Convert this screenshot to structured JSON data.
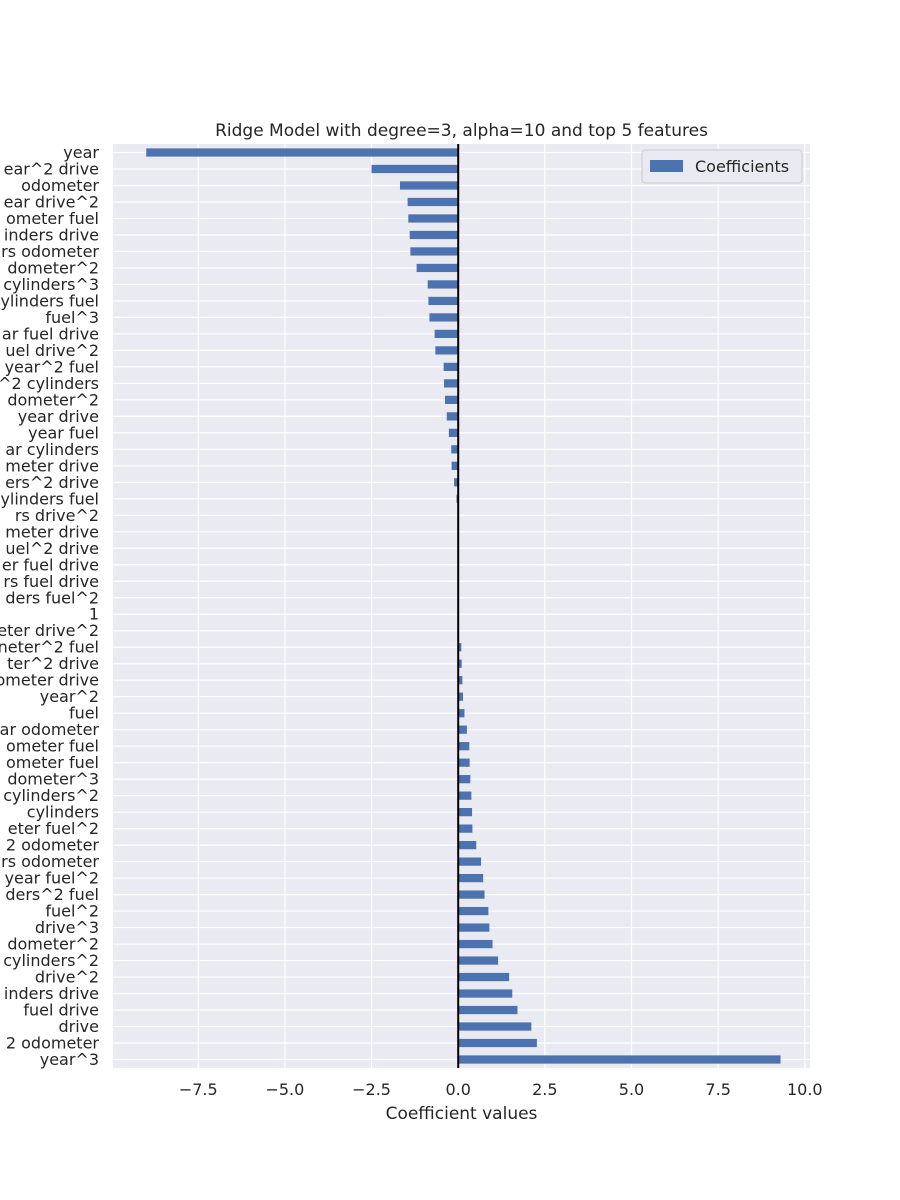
{
  "chart_data": {
    "type": "bar",
    "orientation": "horizontal",
    "title": "Ridge Model with degree=3, alpha=10 and top 5 features",
    "xlabel": "Coefficient values",
    "ylabel": "",
    "xlim": [
      -9.96,
      10.15
    ],
    "xticks": [
      -7.5,
      -5.0,
      -2.5,
      0.0,
      2.5,
      5.0,
      7.5,
      10.0
    ],
    "xtick_labels": [
      "−7.5",
      "−5.0",
      "−2.5",
      "0.0",
      "2.5",
      "5.0",
      "7.5",
      "10.0"
    ],
    "grid": true,
    "legend_position": "top-right",
    "bar_color": "#4c72b0",
    "zero_line_color": "#000000",
    "series": [
      {
        "name": "Coefficients",
        "categories": [
          "year",
          "ear^2 drive",
          "odometer",
          "ear drive^2",
          "ometer fuel",
          "inders drive",
          "rs odometer",
          "dometer^2",
          "cylinders^3",
          "ylinders fuel",
          "fuel^3",
          "ar fuel drive",
          "uel drive^2",
          "year^2 fuel",
          "^2 cylinders",
          "dometer^2",
          "year drive",
          "year fuel",
          "ar cylinders",
          "meter drive",
          "ers^2 drive",
          "ylinders fuel",
          "rs drive^2",
          "meter drive",
          "uel^2 drive",
          "er fuel drive",
          "rs fuel drive",
          "ders fuel^2",
          "1",
          "eter drive^2",
          "neter^2 fuel",
          "ter^2 drive",
          "ometer drive",
          "year^2",
          "fuel",
          "ar odometer",
          "ometer fuel",
          "ometer fuel",
          "dometer^3",
          "cylinders^2",
          "cylinders",
          "eter fuel^2",
          "2 odometer",
          "rs odometer",
          "year fuel^2",
          "ders^2 fuel",
          "fuel^2",
          "drive^3",
          "dometer^2",
          "cylinders^2",
          "drive^2",
          "inders drive",
          "fuel drive",
          "drive",
          "2 odometer",
          "year^3"
        ],
        "values": [
          -9.0,
          -2.5,
          -1.68,
          -1.46,
          -1.44,
          -1.4,
          -1.38,
          -1.2,
          -0.88,
          -0.86,
          -0.83,
          -0.68,
          -0.66,
          -0.42,
          -0.41,
          -0.38,
          -0.33,
          -0.27,
          -0.2,
          -0.19,
          -0.12,
          -0.05,
          0.0,
          0.0,
          0.0,
          0.0,
          0.0,
          0.0,
          0.0,
          0.02,
          0.09,
          0.1,
          0.12,
          0.14,
          0.18,
          0.25,
          0.32,
          0.33,
          0.35,
          0.38,
          0.4,
          0.41,
          0.52,
          0.66,
          0.72,
          0.76,
          0.87,
          0.9,
          0.99,
          1.15,
          1.47,
          1.56,
          1.71,
          2.11,
          2.27,
          9.3
        ]
      }
    ]
  }
}
